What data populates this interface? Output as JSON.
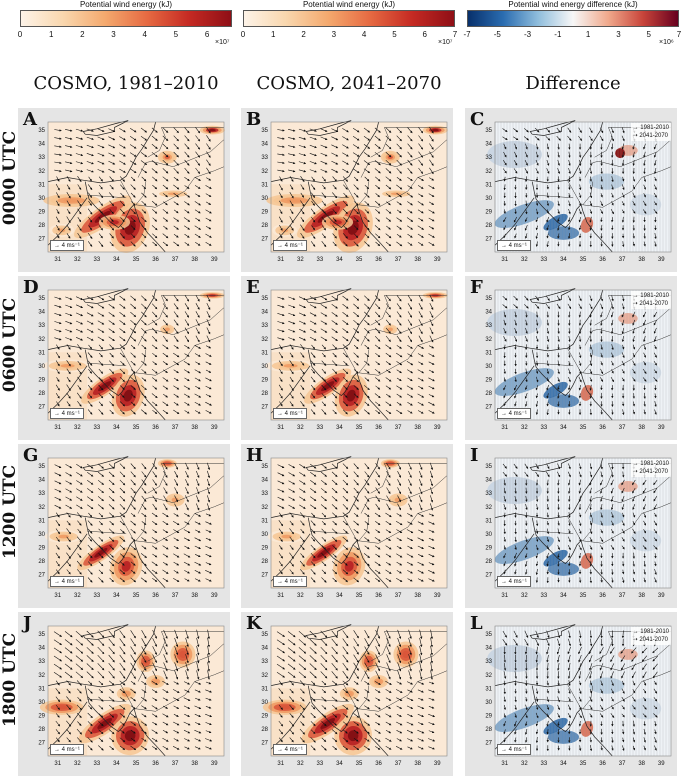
{
  "colorbars": [
    {
      "title": "Potential wind energy (kJ)",
      "ticks": [
        "0",
        "1",
        "2",
        "3",
        "4",
        "5",
        "6"
      ],
      "multiplier": "×10⁷",
      "colors": [
        "#fdf3e8",
        "#f9d7ae",
        "#f4a96e",
        "#e66a42",
        "#c52a23",
        "#8f0f16"
      ]
    },
    {
      "title": "Potential wind energy (kJ)",
      "ticks": [
        "0",
        "1",
        "2",
        "3",
        "4",
        "5",
        "6",
        "7"
      ],
      "multiplier": "×10⁷",
      "colors": [
        "#fdf3e8",
        "#f9d7ae",
        "#f4a96e",
        "#e66a42",
        "#c52a23",
        "#8f0f16"
      ]
    },
    {
      "title": "Potential wind energy difference (kJ)",
      "ticks": [
        "-7",
        "-5",
        "-3",
        "-1",
        "1",
        "3",
        "5",
        "7"
      ],
      "multiplier": "×10⁶",
      "colors": [
        "#08306b",
        "#2a6cb0",
        "#8fbddc",
        "#f7f7f7",
        "#f0a98c",
        "#c8443a",
        "#67001f"
      ]
    }
  ],
  "column_titles": [
    "COSMO, 1981–2010",
    "COSMO, 2041–2070",
    "Difference"
  ],
  "row_labels": [
    "0000 UTC",
    "0600 UTC",
    "1200 UTC",
    "1800 UTC"
  ],
  "panels": [
    [
      "A",
      "B",
      "C"
    ],
    [
      "D",
      "E",
      "F"
    ],
    [
      "G",
      "H",
      "I"
    ],
    [
      "J",
      "K",
      "L"
    ]
  ],
  "x_ticks": [
    "31",
    "32",
    "33",
    "34",
    "35",
    "36",
    "37",
    "38",
    "39"
  ],
  "y_ticks": [
    "35",
    "34",
    "33",
    "32",
    "31",
    "30",
    "29",
    "28",
    "27"
  ],
  "scale_label": "4 ms⁻¹",
  "legend": [
    "1981-2010",
    "2041-2070"
  ],
  "colors": {
    "panel_bg": "#e5e5e5",
    "map_bg": "#fbe9d6",
    "diff_bg": "#eef2f6"
  }
}
